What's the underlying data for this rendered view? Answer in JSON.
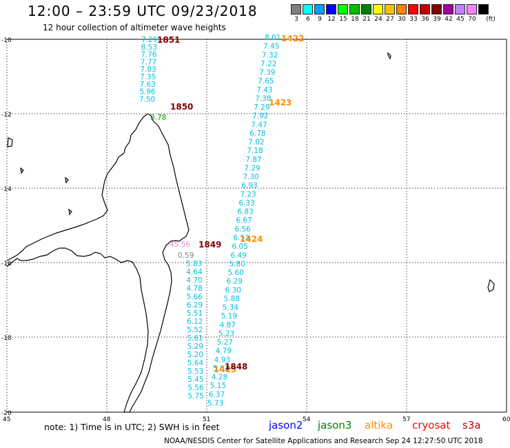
{
  "header": {
    "title": "12:00 – 23:59 UTC 09/23/2018",
    "subtitle": "12 hour collection of altimeter wave heights"
  },
  "legend": {
    "unit": "(ft)",
    "bins": [
      {
        "label": "3",
        "color": "#808080"
      },
      {
        "label": "6",
        "color": "#00ffff"
      },
      {
        "label": "9",
        "color": "#00a0ff"
      },
      {
        "label": "12",
        "color": "#0000ff"
      },
      {
        "label": "15",
        "color": "#00ff00"
      },
      {
        "label": "18",
        "color": "#00c000"
      },
      {
        "label": "21",
        "color": "#008000"
      },
      {
        "label": "24",
        "color": "#ffff00"
      },
      {
        "label": "27",
        "color": "#ffc000"
      },
      {
        "label": "30",
        "color": "#ff8000"
      },
      {
        "label": "33",
        "color": "#ff0000"
      },
      {
        "label": "36",
        "color": "#c00000"
      },
      {
        "label": "39",
        "color": "#800000"
      },
      {
        "label": "42",
        "color": "#a000a0"
      },
      {
        "label": "45",
        "color": "#c080ff"
      },
      {
        "label": "70",
        "color": "#ff80ff"
      },
      {
        "label": "",
        "color": "#000000"
      }
    ]
  },
  "axes": {
    "lat_labels": [
      "-10",
      "-12",
      "-14",
      "-16",
      "-18",
      "-20"
    ],
    "lon_labels": [
      "45",
      "48",
      "51",
      "54",
      "57",
      "60"
    ]
  },
  "tracks": [
    {
      "name": "track-a",
      "color": "#00c0e0",
      "values": [
        "7.29",
        "8.53",
        "7.76",
        "7.77",
        "7.83",
        "7.35",
        "7.63",
        "5.96",
        "7.50"
      ],
      "times": [
        {
          "label": "1851",
          "color": "#800000"
        },
        {
          "label": "1850",
          "color": "#800000"
        }
      ]
    },
    {
      "name": "track-b",
      "color": "#00c0e0",
      "values": [
        "8.01",
        "7.45",
        "7.32",
        "7.22",
        "7.39",
        "7.65",
        "7.43",
        "7.38",
        "7.29",
        "7.92",
        "7.47",
        "6.78",
        "7.02",
        "7.18",
        "7.87",
        "7.29",
        "7.30",
        "6.93",
        "7.23",
        "6.33",
        "6.83",
        "6.67",
        "6.56",
        "6.53",
        "6.05",
        "6.49",
        "5.80",
        "5.60",
        "6.29",
        "6.30",
        "5.88",
        "5.34",
        "5.19",
        "4.87",
        "5.23",
        "5.27",
        "4.79",
        "4.93",
        "5.01",
        "4.28",
        "5.15",
        "6.37",
        "5.73"
      ],
      "times": [
        {
          "label": "1422",
          "color": "#ff8c00"
        },
        {
          "label": "1423",
          "color": "#ff8c00"
        },
        {
          "label": "1424",
          "color": "#ff8c00"
        },
        {
          "label": "1425",
          "color": "#ff8c00"
        }
      ]
    },
    {
      "name": "track-c",
      "color": "#00c0e0",
      "values": [
        "5.83",
        "4.64",
        "4.70",
        "4.78",
        "5.66",
        "6.29",
        "5.51",
        "6.12",
        "5.52",
        "5.61",
        "5.29",
        "5.20",
        "5.64",
        "5.53",
        "5.45",
        "5.56",
        "5.75"
      ],
      "times": [
        {
          "label": "1849",
          "color": "#800000"
        },
        {
          "label": "1848",
          "color": "#800000"
        }
      ]
    }
  ],
  "special_values": [
    {
      "label": "3.78",
      "color": "#00a000"
    },
    {
      "label": "45.56",
      "color": "#e090e0"
    },
    {
      "label": "0.59",
      "color": "#808080"
    }
  ],
  "footer": {
    "note": "note:  1) Time is in UTC;  2) SWH is in feet",
    "missions": [
      {
        "label": "jason2",
        "color": "#0000ff"
      },
      {
        "label": "jason3",
        "color": "#008000"
      },
      {
        "label": "altika",
        "color": "#ff8c00"
      },
      {
        "label": "cryosat",
        "color": "#ff0000"
      },
      {
        "label": "s3a",
        "color": "#c00000"
      }
    ],
    "credit": "NOAA/NESDIS Center for Satellite Applications and Research    Sep 24 12:27:50 UTC 2018"
  }
}
